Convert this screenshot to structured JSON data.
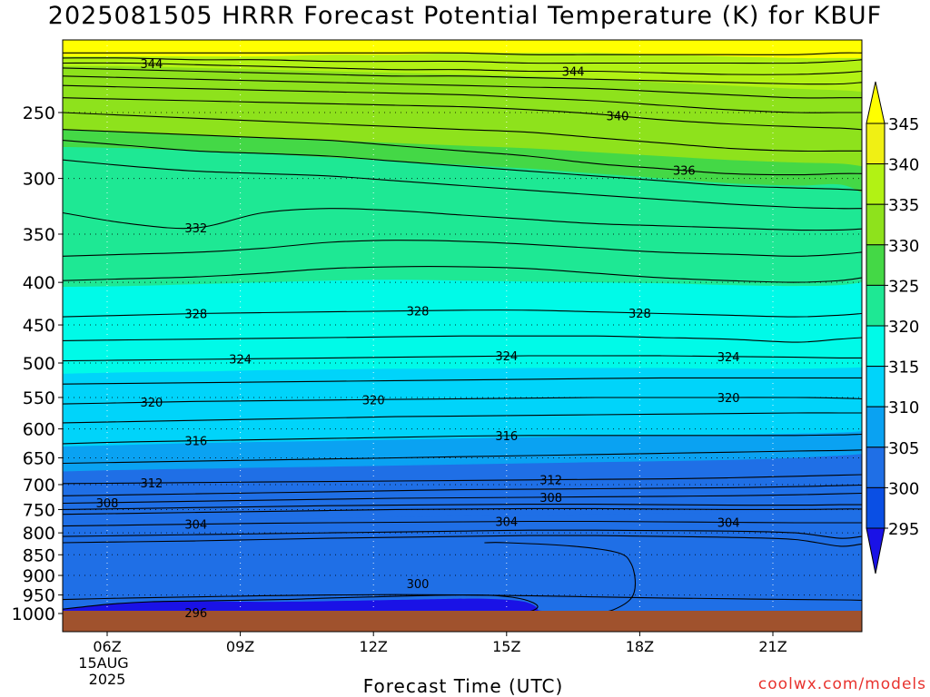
{
  "chart_data": {
    "type": "heatmap",
    "title": "2025081505 HRRR Forecast Potential Temperature (K) for KBUF",
    "xlabel": "Forecast Time (UTC)",
    "ylabel": "",
    "credit": "coolwx.com/models",
    "x_range": [
      5,
      23
    ],
    "x_ticks": [
      {
        "value": 6,
        "label": "06Z",
        "sub1": "15AUG",
        "sub2": "2025"
      },
      {
        "value": 9,
        "label": "09Z"
      },
      {
        "value": 12,
        "label": "12Z"
      },
      {
        "value": 15,
        "label": "15Z"
      },
      {
        "value": 18,
        "label": "18Z"
      },
      {
        "value": 21,
        "label": "21Z"
      }
    ],
    "y_scale": "log",
    "y_range": [
      1015,
      206
    ],
    "y_ticks": [
      250,
      300,
      350,
      400,
      450,
      500,
      550,
      600,
      650,
      700,
      750,
      800,
      850,
      900,
      950,
      1000
    ],
    "grid": true,
    "colorbar": {
      "levels": [
        295,
        300,
        305,
        310,
        315,
        320,
        325,
        330,
        335,
        340,
        345
      ],
      "labels": [
        "345",
        "340",
        "335",
        "330",
        "325",
        "320",
        "315",
        "310",
        "305",
        "300",
        "295"
      ],
      "colors": [
        "#1a12e6",
        "#0a4fe4",
        "#1f6fe6",
        "#0aa2f2",
        "#00d4fa",
        "#00fae8",
        "#1ee894",
        "#44d846",
        "#8ee21c",
        "#b2f214",
        "#f0f014",
        "#ffff00"
      ]
    },
    "fill_bands": [
      {
        "level": 300,
        "color": "#1a12e6",
        "points": [
          [
            5,
            988
          ],
          [
            7,
            968
          ],
          [
            10,
            968
          ],
          [
            13,
            962
          ],
          [
            14.5,
            960
          ],
          [
            15.4,
            968
          ],
          [
            15.7,
            990
          ],
          [
            15.3,
            1000
          ],
          [
            5,
            1000
          ]
        ]
      },
      {
        "level": 305,
        "color": "#1f6fe6",
        "p": [
          778,
          775,
          772,
          770,
          768,
          766,
          764,
          762,
          760,
          758,
          756,
          752,
          748,
          745
        ]
      },
      {
        "level": 310,
        "color": "#0aa2f2",
        "p": [
          675,
          672,
          670,
          668,
          666,
          664,
          662,
          660,
          658,
          656,
          654,
          650,
          646,
          643
        ]
      },
      {
        "level": 315,
        "color": "#00d4fa",
        "p": [
          630,
          627,
          624,
          622,
          620,
          618,
          616,
          614,
          612,
          611,
          610,
          608,
          606,
          604
        ]
      },
      {
        "level": 320,
        "color": "#00fae8",
        "p": [
          515,
          513,
          512,
          510,
          509,
          508,
          508,
          507,
          507,
          507,
          508,
          508,
          507,
          506
        ]
      },
      {
        "level": 325,
        "color": "#1ee894",
        "p": [
          405,
          404,
          402,
          400,
          398,
          397,
          398,
          399,
          400,
          401,
          403,
          404,
          403,
          400
        ]
      },
      {
        "level": 330,
        "color": "#44d846",
        "p": [
          275,
          276,
          278,
          280,
          283,
          286,
          289,
          292,
          296,
          300,
          304,
          306,
          305,
          312
        ]
      },
      {
        "level": 335,
        "color": "#8ee21c",
        "p": [
          262,
          264,
          266,
          268,
          270,
          272,
          274,
          276,
          279,
          282,
          285,
          287,
          288,
          290
        ]
      },
      {
        "level": 340,
        "color": "#b2f214",
        "p": [
          220,
          220,
          221,
          222,
          223,
          224,
          225,
          226,
          228,
          230,
          232,
          234,
          235,
          236
        ]
      },
      {
        "level": 345,
        "color": "#ffff00",
        "p": [
          214,
          214,
          214,
          214,
          213,
          213,
          212,
          212,
          212,
          213,
          214,
          215,
          215,
          215
        ]
      }
    ],
    "contour_times": [
      5,
      6.5,
      8,
      9.5,
      11,
      12.5,
      14,
      15.5,
      17,
      18.5,
      20,
      21.5,
      22.5,
      23
    ],
    "contours": [
      {
        "value": 296,
        "p": [
          1000,
          998,
          997,
          996,
          996,
          997,
          998,
          999,
          1000,
          1000,
          1000,
          1000,
          1000,
          1000
        ],
        "label": "296",
        "label_x": 8.0
      },
      {
        "value": 298,
        "p": [
          962,
          958,
          955,
          952,
          950,
          949,
          950,
          952,
          955,
          958,
          960,
          962,
          963,
          964
        ]
      },
      {
        "value": 302,
        "p": [
          822,
          820,
          818,
          815,
          812,
          810,
          808,
          806,
          806,
          808,
          810,
          815,
          830,
          825
        ]
      },
      {
        "value": 303,
        "p": [
          808,
          806,
          804,
          802,
          800,
          798,
          796,
          794,
          794,
          795,
          796,
          800,
          812,
          808
        ]
      },
      {
        "value": 304,
        "p": [
          785,
          783,
          781,
          779,
          778,
          777,
          776,
          775,
          775,
          776,
          777,
          778,
          778,
          778
        ],
        "label": "304",
        "label_x": 8.0,
        "label_x2": 15.0,
        "label_x3": 20.0
      },
      {
        "value": 306,
        "p": [
          760,
          758,
          756,
          754,
          752,
          750,
          749,
          748,
          748,
          749,
          750,
          750,
          749,
          749
        ]
      },
      {
        "value": 307,
        "p": [
          750,
          748,
          746,
          744,
          742,
          741,
          740,
          739,
          739,
          740,
          741,
          741,
          740,
          740
        ]
      },
      {
        "value": 308,
        "p": [
          737,
          735,
          733,
          731,
          729,
          727,
          726,
          725,
          724,
          723,
          722,
          720,
          718,
          717
        ],
        "label": "308",
        "label_x": 6.0,
        "label_x2": 16.0
      },
      {
        "value": 310,
        "p": [
          722,
          720,
          718,
          716,
          714,
          712,
          710,
          709,
          708,
          707,
          706,
          704,
          702,
          701
        ]
      },
      {
        "value": 312,
        "p": [
          698,
          697,
          696,
          695,
          694,
          693,
          692,
          691,
          690,
          689,
          687,
          684,
          682,
          681
        ],
        "label": "312",
        "label_x": 7.0,
        "label_x2": 16.0
      },
      {
        "value": 314,
        "p": [
          660,
          658,
          656,
          654,
          652,
          650,
          648,
          646,
          644,
          642,
          640,
          638,
          637,
          636
        ]
      },
      {
        "value": 316,
        "p": [
          625,
          622,
          620,
          618,
          616,
          614,
          612,
          611,
          611,
          611,
          611,
          611,
          610,
          609
        ],
        "label": "316",
        "label_x": 8.0,
        "label_x2": 15.0
      },
      {
        "value": 318,
        "p": [
          590,
          588,
          586,
          584,
          582,
          580,
          579,
          578,
          577,
          576,
          575,
          574,
          574,
          574
        ]
      },
      {
        "value": 320,
        "p": [
          560,
          558,
          556,
          555,
          554,
          553,
          552,
          551,
          550,
          550,
          550,
          550,
          551,
          552
        ],
        "label": "320",
        "label_x": 7.0,
        "label_x2": 12.0,
        "label_x3": 20.0
      },
      {
        "value": 322,
        "p": [
          530,
          529,
          528,
          527,
          526,
          525,
          524,
          523,
          522,
          521,
          521,
          521,
          521,
          521
        ]
      },
      {
        "value": 324,
        "p": [
          497,
          496,
          495,
          494,
          493,
          492,
          491,
          490,
          490,
          490,
          491,
          492,
          493,
          493
        ],
        "label": "324",
        "label_x": 9.0,
        "label_x2": 15.0,
        "label_x3": 20.0
      },
      {
        "value": 326,
        "p": [
          470,
          469,
          468,
          467,
          466,
          465,
          464,
          464,
          464,
          466,
          468,
          472,
          468,
          466
        ]
      },
      {
        "value": 328,
        "p": [
          440,
          438,
          436,
          435,
          434,
          433,
          432,
          432,
          434,
          436,
          438,
          440,
          438,
          436
        ],
        "label": "328",
        "label_x": 8.0,
        "label_x2": 13.0,
        "label_x3": 18.0
      },
      {
        "value": 330,
        "p": [
          398,
          396,
          394,
          390,
          385,
          383,
          383,
          385,
          390,
          395,
          398,
          400,
          398,
          395
        ]
      },
      {
        "value": 331,
        "p": [
          372,
          370,
          368,
          364,
          358,
          356,
          357,
          360,
          364,
          368,
          370,
          372,
          370,
          368
        ]
      },
      {
        "value": 332,
        "p": [
          330,
          340,
          344,
          330,
          326,
          328,
          332,
          336,
          340,
          342,
          344,
          346,
          346,
          345
        ],
        "label": "332",
        "label_x": 8.0
      },
      {
        "value": 334,
        "p": [
          285,
          290,
          294,
          296,
          298,
          302,
          306,
          310,
          314,
          318,
          322,
          325,
          326,
          326
        ]
      },
      {
        "value": 335,
        "p": [
          270,
          274,
          278,
          280,
          282,
          286,
          290,
          294,
          298,
          302,
          306,
          308,
          309,
          310
        ]
      },
      {
        "value": 336,
        "p": [
          262,
          264,
          266,
          268,
          270,
          274,
          278,
          282,
          288,
          292,
          296,
          297,
          296,
          296
        ],
        "label": "336",
        "label_x": 19.0
      },
      {
        "value": 338,
        "p": [
          250,
          252,
          254,
          256,
          258,
          260,
          262,
          264,
          268,
          272,
          276,
          278,
          278,
          278
        ]
      },
      {
        "value": 340,
        "p": [
          240,
          241,
          242,
          243,
          244,
          245,
          246,
          248,
          251,
          255,
          258,
          260,
          261,
          262
        ],
        "label": "340",
        "label_x": 17.5
      },
      {
        "value": 341,
        "p": [
          232,
          233,
          234,
          235,
          236,
          237,
          238,
          240,
          242,
          245,
          248,
          250,
          250,
          250
        ]
      },
      {
        "value": 342,
        "p": [
          226,
          227,
          228,
          229,
          230,
          231,
          232,
          233,
          234,
          236,
          238,
          240,
          240,
          240
        ]
      },
      {
        "value": 343,
        "p": [
          221,
          222,
          223,
          224,
          225,
          226,
          226,
          227,
          228,
          229,
          230,
          231,
          231,
          230
        ]
      },
      {
        "value": 344,
        "p": [
          218,
          218,
          219,
          220,
          221,
          222,
          222,
          223,
          223,
          224,
          225,
          225,
          224,
          223
        ],
        "label": "344",
        "label_x": 7.0,
        "label_x2": 16.5
      },
      {
        "value": 345,
        "p": [
          215,
          215,
          216,
          216,
          217,
          217,
          217,
          218,
          218,
          218,
          218,
          218,
          217,
          216
        ]
      },
      {
        "value": 346,
        "p": [
          212,
          212,
          212,
          212,
          212,
          212,
          212,
          213,
          213,
          213,
          213,
          213,
          212,
          212
        ]
      }
    ],
    "closed_contours": [
      {
        "value": 300,
        "label": "300",
        "label_x": 13.0,
        "label_p": 920,
        "points": [
          [
            5,
            988
          ],
          [
            6,
            975
          ],
          [
            7,
            968
          ],
          [
            8,
            966
          ],
          [
            9,
            964
          ],
          [
            10,
            962
          ],
          [
            11,
            958
          ],
          [
            12,
            955
          ],
          [
            13,
            952
          ],
          [
            14,
            950
          ],
          [
            14.8,
            952
          ],
          [
            15.4,
            962
          ],
          [
            15.7,
            980
          ],
          [
            15.5,
            995
          ],
          [
            15.0,
            1000
          ]
        ]
      },
      {
        "value": 302,
        "points": [
          [
            17.0,
            1000
          ],
          [
            17.4,
            990
          ],
          [
            17.8,
            960
          ],
          [
            17.9,
            920
          ],
          [
            17.8,
            870
          ],
          [
            17.5,
            845
          ],
          [
            16.5,
            830
          ],
          [
            15.0,
            822
          ],
          [
            14.5,
            822
          ]
        ]
      }
    ]
  }
}
